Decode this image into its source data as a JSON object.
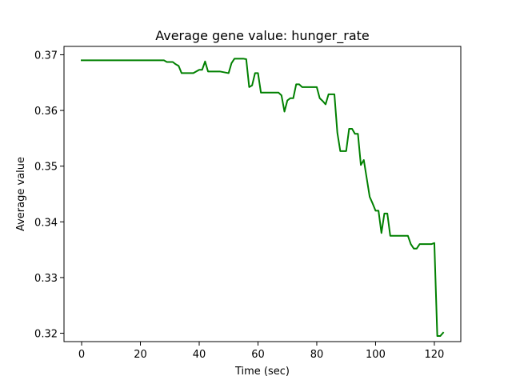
{
  "chart_data": {
    "type": "line",
    "title": "Average gene value: hunger_rate",
    "xlabel": "Time (sec)",
    "ylabel": "Average value",
    "xlim": [
      -6,
      129
    ],
    "ylim": [
      0.3185,
      0.3715
    ],
    "x_ticks": [
      0,
      20,
      40,
      60,
      80,
      100,
      120
    ],
    "y_ticks": [
      0.32,
      0.33,
      0.34,
      0.35,
      0.36,
      0.37
    ],
    "x_tick_labels": [
      "0",
      "20",
      "40",
      "60",
      "80",
      "100",
      "120"
    ],
    "y_tick_labels": [
      "0.32",
      "0.33",
      "0.34",
      "0.35",
      "0.36",
      "0.37"
    ],
    "grid": false,
    "legend": "none",
    "series": [
      {
        "color": "#008000",
        "x": [
          0,
          28,
          29,
          31,
          32,
          33,
          34,
          37,
          38,
          40,
          41,
          42,
          43,
          44,
          47,
          50,
          51,
          52,
          53,
          55,
          56,
          57,
          58,
          59,
          60,
          61,
          62,
          63,
          64,
          65,
          66,
          67,
          68,
          69,
          70,
          71,
          72,
          73,
          74,
          75,
          76,
          77,
          78,
          79,
          80,
          81,
          82,
          83,
          84,
          85,
          86,
          87,
          88,
          89,
          90,
          91,
          92,
          93,
          94,
          95,
          96,
          97,
          98,
          99,
          100,
          101,
          102,
          103,
          104,
          105,
          106,
          107,
          108,
          109,
          110,
          111,
          112,
          113,
          114,
          115,
          116,
          117,
          118,
          119,
          120,
          121,
          122,
          123
        ],
        "y": [
          0.369,
          0.369,
          0.3687,
          0.3687,
          0.3683,
          0.368,
          0.3667,
          0.3667,
          0.3667,
          0.3673,
          0.3673,
          0.3688,
          0.367,
          0.367,
          0.367,
          0.3667,
          0.3685,
          0.3693,
          0.3693,
          0.3693,
          0.3692,
          0.3642,
          0.3645,
          0.3667,
          0.3667,
          0.3632,
          0.3632,
          0.3632,
          0.3632,
          0.3632,
          0.3632,
          0.3632,
          0.3627,
          0.3598,
          0.3618,
          0.3622,
          0.3622,
          0.3647,
          0.3647,
          0.3642,
          0.3642,
          0.3642,
          0.3642,
          0.3642,
          0.3642,
          0.3622,
          0.3617,
          0.3611,
          0.3629,
          0.3629,
          0.3629,
          0.356,
          0.3527,
          0.3527,
          0.3527,
          0.3567,
          0.3567,
          0.3558,
          0.3558,
          0.3502,
          0.3511,
          0.3478,
          0.3445,
          0.3433,
          0.342,
          0.342,
          0.338,
          0.3415,
          0.3415,
          0.3375,
          0.3375,
          0.3375,
          0.3375,
          0.3375,
          0.3375,
          0.3375,
          0.336,
          0.3352,
          0.3352,
          0.336,
          0.336,
          0.336,
          0.336,
          0.336,
          0.3362,
          0.3195,
          0.3195,
          0.3201
        ]
      }
    ]
  }
}
